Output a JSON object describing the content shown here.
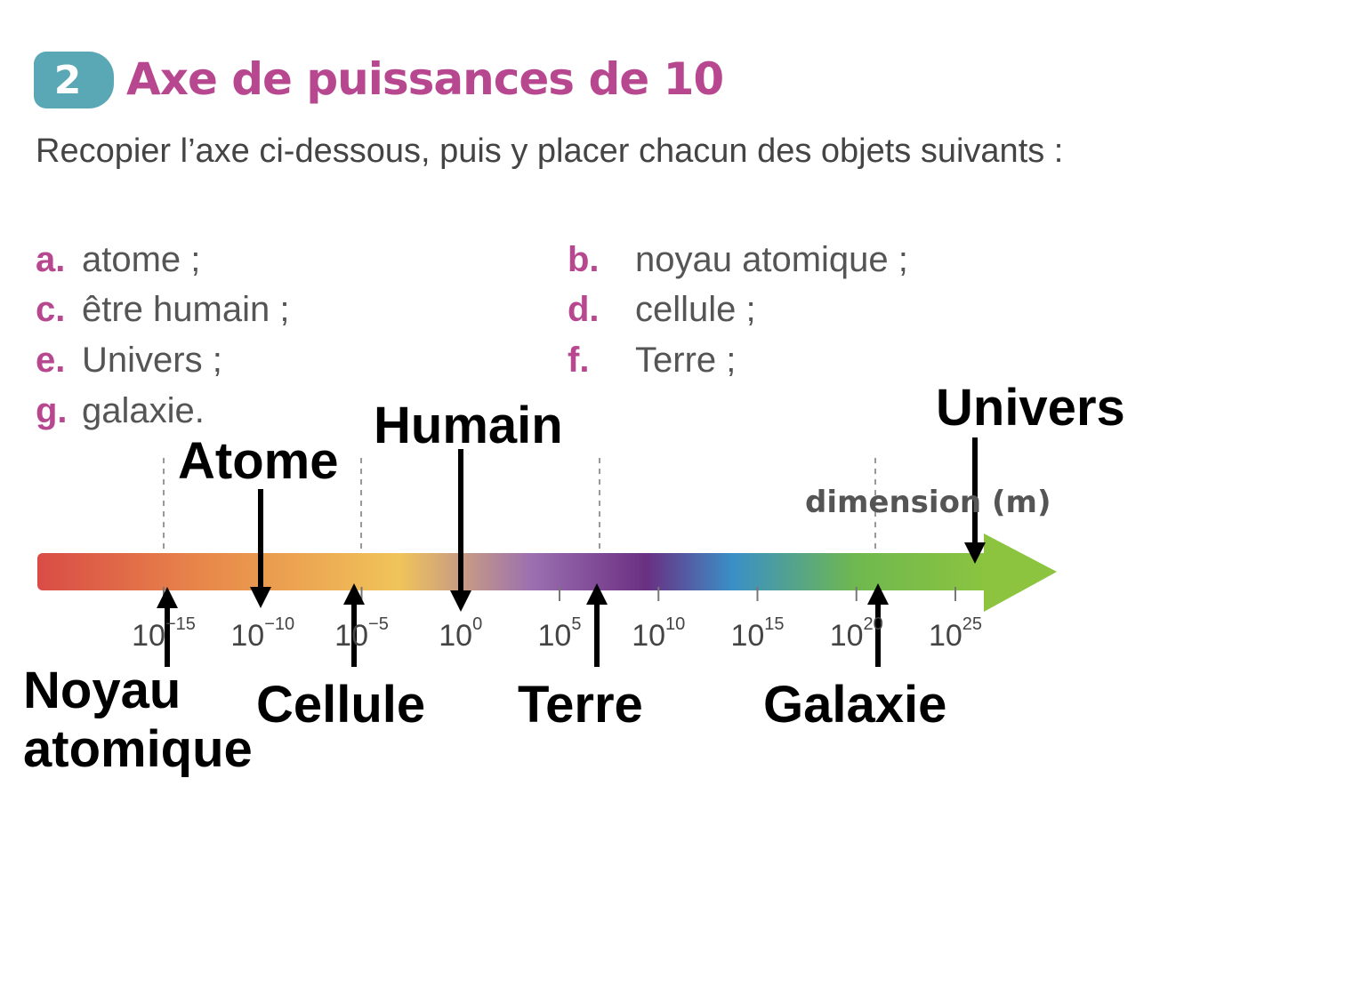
{
  "exercise": {
    "number": "2",
    "title": "Axe de puissances de 10",
    "instruction": "Recopier l’axe ci-dessous, puis y placer chacun des objets suivants :",
    "items": [
      {
        "letter": "a.",
        "text": "atome ;"
      },
      {
        "letter": "b.",
        "text": "noyau atomique ;"
      },
      {
        "letter": "c.",
        "text": "être humain ;"
      },
      {
        "letter": "d.",
        "text": "cellule ;"
      },
      {
        "letter": "e.",
        "text": "Univers ;"
      },
      {
        "letter": "f.",
        "text": "Terre ;"
      },
      {
        "letter": "g.",
        "text": "galaxie."
      }
    ]
  },
  "axis": {
    "unit_label": "dimension (m)",
    "ticks": [
      {
        "base": "10",
        "exp": "−15",
        "value": -15
      },
      {
        "base": "10",
        "exp": "−10",
        "value": -10
      },
      {
        "base": "10",
        "exp": "−5",
        "value": -5
      },
      {
        "base": "10",
        "exp": "0",
        "value": 0
      },
      {
        "base": "10",
        "exp": "5",
        "value": 5
      },
      {
        "base": "10",
        "exp": "10",
        "value": 10
      },
      {
        "base": "10",
        "exp": "15",
        "value": 15
      },
      {
        "base": "10",
        "exp": "20",
        "value": 20
      },
      {
        "base": "10",
        "exp": "25",
        "value": 25
      }
    ],
    "gradient_colors": [
      "#d94c46",
      "#e8894a",
      "#f0c45a",
      "#9b6fb0",
      "#6a2f82",
      "#3a8fc7",
      "#6fb84f",
      "#8cc43f"
    ]
  },
  "answers": {
    "noyau_line1": "Noyau",
    "noyau_line2": "atomique",
    "atome": "Atome",
    "cellule": "Cellule",
    "humain": "Humain",
    "terre": "Terre",
    "galaxie": "Galaxie",
    "univers": "Univers"
  }
}
